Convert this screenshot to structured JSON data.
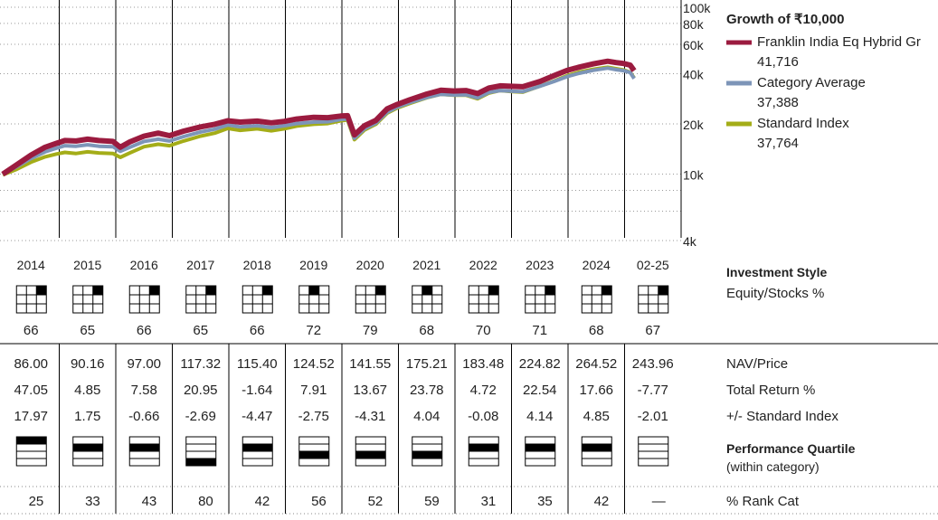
{
  "chart_data": {
    "type": "line",
    "y_scale": "log",
    "ylim": [
      4000,
      100000
    ],
    "y_ticks": [
      {
        "v": 100000,
        "label": "100k"
      },
      {
        "v": 80000,
        "label": "80k"
      },
      {
        "v": 60000,
        "label": "60k"
      },
      {
        "v": 40000,
        "label": "40k"
      },
      {
        "v": 20000,
        "label": "20k"
      },
      {
        "v": 10000,
        "label": "10k"
      },
      {
        "v": 4000,
        "label": "4k"
      }
    ],
    "x_range": [
      2014.0,
      2025.17
    ],
    "legend_title": "Growth of ₹10,000",
    "series": [
      {
        "name": "Franklin India Eq Hybrid Gr",
        "value_label": "41,716",
        "color": "#9b1b3f",
        "width": 6,
        "points": [
          [
            2014.0,
            10000
          ],
          [
            2014.25,
            11400
          ],
          [
            2014.5,
            13000
          ],
          [
            2014.75,
            14500
          ],
          [
            2014.95,
            15300
          ],
          [
            2015.1,
            15900
          ],
          [
            2015.3,
            15800
          ],
          [
            2015.5,
            16200
          ],
          [
            2015.7,
            15900
          ],
          [
            2015.95,
            15700
          ],
          [
            2016.08,
            14500
          ],
          [
            2016.25,
            15600
          ],
          [
            2016.5,
            16900
          ],
          [
            2016.75,
            17600
          ],
          [
            2016.95,
            17000
          ],
          [
            2017.2,
            18100
          ],
          [
            2017.5,
            19200
          ],
          [
            2017.75,
            19900
          ],
          [
            2017.98,
            20900
          ],
          [
            2018.2,
            20500
          ],
          [
            2018.5,
            20800
          ],
          [
            2018.75,
            20300
          ],
          [
            2018.98,
            20700
          ],
          [
            2019.2,
            21400
          ],
          [
            2019.5,
            21900
          ],
          [
            2019.75,
            21800
          ],
          [
            2019.98,
            22300
          ],
          [
            2020.1,
            22400
          ],
          [
            2020.22,
            17200
          ],
          [
            2020.4,
            19500
          ],
          [
            2020.6,
            21000
          ],
          [
            2020.8,
            24600
          ],
          [
            2020.98,
            26200
          ],
          [
            2021.2,
            27900
          ],
          [
            2021.5,
            30200
          ],
          [
            2021.75,
            31800
          ],
          [
            2021.98,
            31500
          ],
          [
            2022.2,
            31700
          ],
          [
            2022.4,
            30400
          ],
          [
            2022.6,
            32800
          ],
          [
            2022.8,
            33800
          ],
          [
            2022.98,
            33600
          ],
          [
            2023.2,
            33400
          ],
          [
            2023.5,
            35900
          ],
          [
            2023.75,
            38900
          ],
          [
            2023.98,
            41800
          ],
          [
            2024.2,
            43800
          ],
          [
            2024.45,
            45800
          ],
          [
            2024.7,
            47500
          ],
          [
            2024.85,
            46600
          ],
          [
            2024.98,
            46000
          ],
          [
            2025.1,
            45000
          ],
          [
            2025.17,
            41716
          ]
        ]
      },
      {
        "name": "Category Average",
        "value_label": "37,388",
        "color": "#7d95b8",
        "width": 4,
        "points": [
          [
            2014.0,
            10000
          ],
          [
            2014.25,
            11100
          ],
          [
            2014.5,
            12400
          ],
          [
            2014.75,
            13600
          ],
          [
            2014.95,
            14300
          ],
          [
            2015.1,
            14800
          ],
          [
            2015.3,
            14700
          ],
          [
            2015.5,
            15000
          ],
          [
            2015.7,
            14700
          ],
          [
            2015.95,
            14600
          ],
          [
            2016.08,
            13700
          ],
          [
            2016.25,
            14500
          ],
          [
            2016.5,
            15700
          ],
          [
            2016.75,
            16200
          ],
          [
            2016.95,
            15800
          ],
          [
            2017.2,
            16800
          ],
          [
            2017.5,
            17900
          ],
          [
            2017.75,
            18600
          ],
          [
            2017.98,
            19700
          ],
          [
            2018.2,
            19200
          ],
          [
            2018.5,
            19500
          ],
          [
            2018.75,
            19000
          ],
          [
            2018.98,
            19500
          ],
          [
            2019.2,
            20100
          ],
          [
            2019.5,
            20500
          ],
          [
            2019.75,
            20600
          ],
          [
            2019.98,
            21300
          ],
          [
            2020.1,
            21400
          ],
          [
            2020.22,
            16400
          ],
          [
            2020.4,
            18700
          ],
          [
            2020.6,
            20200
          ],
          [
            2020.8,
            23500
          ],
          [
            2020.98,
            25200
          ],
          [
            2021.2,
            26800
          ],
          [
            2021.5,
            28800
          ],
          [
            2021.75,
            30100
          ],
          [
            2021.98,
            29800
          ],
          [
            2022.2,
            29900
          ],
          [
            2022.4,
            28600
          ],
          [
            2022.6,
            30900
          ],
          [
            2022.8,
            31700
          ],
          [
            2022.98,
            31400
          ],
          [
            2023.2,
            31200
          ],
          [
            2023.5,
            33600
          ],
          [
            2023.75,
            35900
          ],
          [
            2023.98,
            38400
          ],
          [
            2024.2,
            40200
          ],
          [
            2024.45,
            41900
          ],
          [
            2024.7,
            43200
          ],
          [
            2024.85,
            42300
          ],
          [
            2024.98,
            41700
          ],
          [
            2025.1,
            40600
          ],
          [
            2025.17,
            37388
          ]
        ]
      },
      {
        "name": "Standard Index",
        "value_label": "37,764",
        "color": "#a4ad18",
        "width": 4,
        "points": [
          [
            2014.0,
            9900
          ],
          [
            2014.25,
            10700
          ],
          [
            2014.5,
            11800
          ],
          [
            2014.75,
            12700
          ],
          [
            2014.95,
            13200
          ],
          [
            2015.1,
            13500
          ],
          [
            2015.3,
            13300
          ],
          [
            2015.5,
            13600
          ],
          [
            2015.7,
            13400
          ],
          [
            2015.95,
            13300
          ],
          [
            2016.08,
            12600
          ],
          [
            2016.25,
            13400
          ],
          [
            2016.5,
            14600
          ],
          [
            2016.75,
            15100
          ],
          [
            2016.95,
            14800
          ],
          [
            2017.2,
            15800
          ],
          [
            2017.5,
            16900
          ],
          [
            2017.75,
            17600
          ],
          [
            2017.98,
            18800
          ],
          [
            2018.2,
            18300
          ],
          [
            2018.5,
            18700
          ],
          [
            2018.75,
            18200
          ],
          [
            2018.98,
            18700
          ],
          [
            2019.2,
            19400
          ],
          [
            2019.5,
            19900
          ],
          [
            2019.75,
            20100
          ],
          [
            2019.98,
            20900
          ],
          [
            2020.1,
            21100
          ],
          [
            2020.22,
            16100
          ],
          [
            2020.4,
            18400
          ],
          [
            2020.6,
            19900
          ],
          [
            2020.8,
            23200
          ],
          [
            2020.98,
            24900
          ],
          [
            2021.2,
            26500
          ],
          [
            2021.5,
            28700
          ],
          [
            2021.75,
            30100
          ],
          [
            2021.98,
            29700
          ],
          [
            2022.2,
            29700
          ],
          [
            2022.4,
            28300
          ],
          [
            2022.6,
            30600
          ],
          [
            2022.8,
            31700
          ],
          [
            2022.98,
            31300
          ],
          [
            2023.2,
            31000
          ],
          [
            2023.5,
            33700
          ],
          [
            2023.75,
            36100
          ],
          [
            2023.98,
            38900
          ],
          [
            2024.2,
            40900
          ],
          [
            2024.45,
            42500
          ],
          [
            2024.7,
            43700
          ],
          [
            2024.85,
            42800
          ],
          [
            2024.98,
            42100
          ],
          [
            2025.1,
            40800
          ],
          [
            2025.17,
            37764
          ]
        ]
      }
    ],
    "years": [
      "2014",
      "2015",
      "2016",
      "2017",
      "2018",
      "2019",
      "2020",
      "2021",
      "2022",
      "2023",
      "2024",
      "02-25"
    ],
    "equity_pct": [
      "66",
      "65",
      "66",
      "65",
      "66",
      "72",
      "79",
      "68",
      "70",
      "71",
      "68",
      "67"
    ],
    "nav": [
      "86.00",
      "90.16",
      "97.00",
      "117.32",
      "115.40",
      "124.52",
      "141.55",
      "175.21",
      "183.48",
      "224.82",
      "264.52",
      "243.96"
    ],
    "total_return": [
      "47.05",
      "4.85",
      "7.58",
      "20.95",
      "-1.64",
      "7.91",
      "13.67",
      "23.78",
      "4.72",
      "22.54",
      "17.66",
      "-7.77"
    ],
    "vs_index": [
      "17.97",
      "1.75",
      "-0.66",
      "-2.69",
      "-4.47",
      "-2.75",
      "-4.31",
      "4.04",
      "-0.08",
      "4.14",
      "4.85",
      "-2.01"
    ],
    "quartile": [
      1,
      2,
      2,
      4,
      2,
      3,
      3,
      3,
      2,
      2,
      2,
      0
    ],
    "rank_cat": [
      "25",
      "33",
      "43",
      "80",
      "42",
      "56",
      "52",
      "59",
      "31",
      "35",
      "42",
      "—"
    ],
    "labels": {
      "investment_style": "Investment Style",
      "equity_stocks": "Equity/Stocks %",
      "nav_price": "NAV/Price",
      "total_return": "Total Return %",
      "vs_index": "+/- Standard Index",
      "perf_quartile": "Performance Quartile",
      "within_category": "(within category)",
      "rank_cat": "% Rank Cat"
    }
  }
}
